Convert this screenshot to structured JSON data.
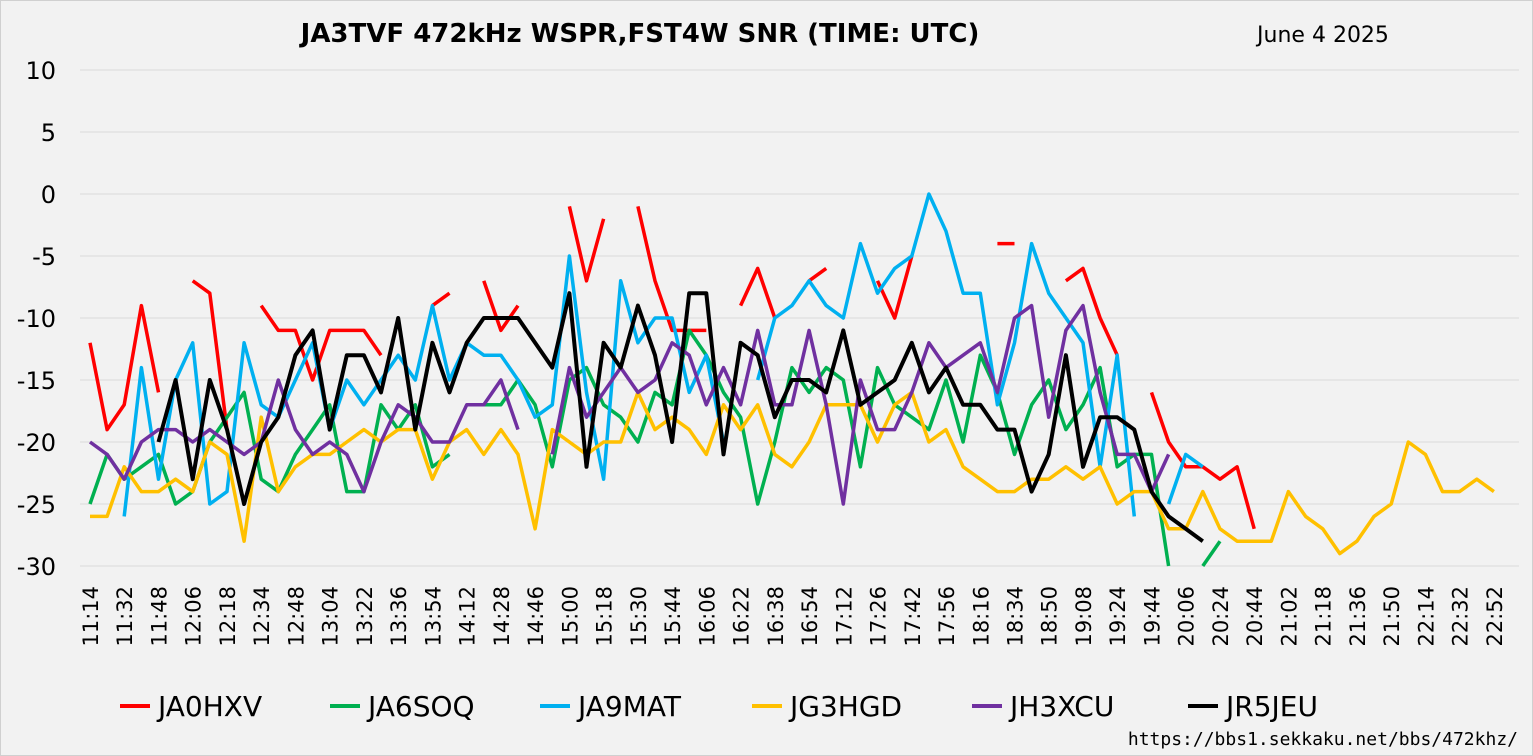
{
  "url": "https://bbs1.sekkaku.net/bbs/472khz/",
  "chart_data": {
    "type": "line",
    "title": "JA3TVF 472kHz WSPR,FST4W SNR (TIME: UTC)",
    "subtitle": "June 4 2025",
    "xlabel": "",
    "ylabel": "",
    "ylim": [
      -30,
      10
    ],
    "yticks": [
      10,
      5,
      0,
      -5,
      -10,
      -15,
      -20,
      -25,
      -30
    ],
    "grid": true,
    "legend_position": "bottom",
    "x_tick_labels": [
      "11:14",
      "11:32",
      "11:48",
      "12:06",
      "12:18",
      "12:34",
      "12:48",
      "13:04",
      "13:22",
      "13:36",
      "13:54",
      "14:12",
      "14:28",
      "14:46",
      "15:00",
      "15:18",
      "15:30",
      "15:44",
      "16:06",
      "16:22",
      "16:38",
      "16:54",
      "17:12",
      "17:26",
      "17:42",
      "17:56",
      "18:16",
      "18:34",
      "18:50",
      "19:08",
      "19:24",
      "19:44",
      "20:06",
      "20:24",
      "20:44",
      "21:02",
      "21:18",
      "21:36",
      "21:50",
      "22:14",
      "22:32",
      "22:52"
    ],
    "point_count": 84,
    "series": [
      {
        "name": "JA0HXV",
        "color": "#ff0000",
        "values": [
          -12,
          -19,
          -17,
          -9,
          -16,
          null,
          -7,
          -8,
          -19,
          null,
          -9,
          -11,
          -11,
          -15,
          -11,
          -11,
          -11,
          -13,
          null,
          null,
          -9,
          -8,
          null,
          -7,
          -11,
          -9,
          null,
          null,
          -1,
          -7,
          -2,
          null,
          -1,
          -7,
          -11,
          -11,
          -11,
          null,
          -9,
          -6,
          -10,
          null,
          -7,
          -6,
          null,
          null,
          -7,
          -10,
          -5,
          null,
          null,
          null,
          null,
          -4,
          -4,
          null,
          null,
          -7,
          -6,
          -10,
          -13,
          null,
          -16,
          -20,
          -22,
          -22,
          -23,
          -22,
          -27
        ]
      },
      {
        "name": "JA6SOQ",
        "color": "#00b050",
        "values": [
          -25,
          -21,
          -23,
          -22,
          -21,
          -25,
          -24,
          -20,
          -18,
          -16,
          -23,
          -24,
          -21,
          -19,
          -17,
          -24,
          -24,
          -17,
          -19,
          -17,
          -22,
          -21,
          null,
          -17,
          -17,
          -15,
          -17,
          -22,
          -15,
          -14,
          -17,
          -18,
          -20,
          -16,
          -17,
          -11,
          -13,
          -16,
          -18,
          -25,
          -20,
          -14,
          -16,
          -14,
          -15,
          -22,
          -14,
          -17,
          -18,
          -19,
          -15,
          -20,
          -13,
          -16,
          -21,
          -17,
          -15,
          -19,
          -17,
          -14,
          -22,
          -21,
          -21,
          -30,
          null,
          -30,
          -28
        ]
      },
      {
        "name": "JA9MAT",
        "color": "#00b0f0",
        "values": [
          null,
          null,
          -26,
          -14,
          -23,
          -15,
          -12,
          -25,
          -24,
          -12,
          -17,
          -18,
          -15,
          -12,
          -19,
          -15,
          -17,
          -15,
          -13,
          -15,
          -9,
          -15,
          -12,
          -13,
          -13,
          -15,
          -18,
          -17,
          -5,
          -16,
          -23,
          -7,
          -12,
          -10,
          -10,
          -16,
          -13,
          -20,
          null,
          -15,
          -10,
          -9,
          -7,
          -9,
          -10,
          -4,
          -8,
          -6,
          -5,
          0,
          -3,
          -8,
          -8,
          -17,
          -12,
          -4,
          -8,
          -10,
          -12,
          -22,
          -13,
          -26,
          null,
          -25,
          -21,
          -22
        ]
      },
      {
        "name": "JG3HGD",
        "color": "#ffc000",
        "values": [
          -26,
          -26,
          -22,
          -24,
          -24,
          -23,
          -24,
          -20,
          -21,
          -28,
          -18,
          -24,
          -22,
          -21,
          -21,
          -20,
          -19,
          -20,
          -19,
          -19,
          -23,
          -20,
          -19,
          -21,
          -19,
          -21,
          -27,
          -19,
          -20,
          -21,
          -20,
          -20,
          -16,
          -19,
          -18,
          -19,
          -21,
          -17,
          -19,
          -17,
          -21,
          -22,
          -20,
          -17,
          -17,
          -17,
          -20,
          -17,
          -16,
          -20,
          -19,
          -22,
          -23,
          -24,
          -24,
          -23,
          -23,
          -22,
          -23,
          -22,
          -25,
          -24,
          -24,
          -27,
          -27,
          -24,
          -27,
          -28,
          -28,
          -28,
          -24,
          -26,
          -27,
          -29,
          -28,
          -26,
          -25,
          -20,
          -21,
          -24,
          -24,
          -23,
          -24
        ]
      },
      {
        "name": "JH3XCU",
        "color": "#7030a0",
        "values": [
          -20,
          -21,
          -23,
          -20,
          -19,
          -19,
          -20,
          -19,
          -20,
          -21,
          -20,
          -15,
          -19,
          -21,
          -20,
          -21,
          -24,
          -20,
          -17,
          -18,
          -20,
          -20,
          -17,
          -17,
          -15,
          -19,
          null,
          -21,
          -14,
          -18,
          -16,
          -14,
          -16,
          -15,
          -12,
          -13,
          -17,
          -14,
          -17,
          -11,
          -17,
          -17,
          -11,
          -17,
          -25,
          -15,
          -19,
          -19,
          -16,
          -12,
          -14,
          -13,
          -12,
          -16,
          -10,
          -9,
          -18,
          -11,
          -9,
          -16,
          -21,
          -21,
          -24,
          -21
        ]
      },
      {
        "name": "JR5JEU",
        "color": "#000000",
        "values": [
          null,
          null,
          null,
          null,
          -20,
          -15,
          -23,
          -15,
          -19,
          -25,
          -20,
          -18,
          -13,
          -11,
          -19,
          -13,
          -13,
          -16,
          -10,
          -19,
          -12,
          -16,
          -12,
          -10,
          -10,
          -10,
          -12,
          -14,
          -8,
          -22,
          -12,
          -14,
          -9,
          -13,
          -20,
          -8,
          -8,
          -21,
          -12,
          -13,
          -18,
          -15,
          -15,
          -16,
          -11,
          -17,
          -16,
          -15,
          -12,
          -16,
          -14,
          -17,
          -17,
          -19,
          -19,
          -24,
          -21,
          -13,
          -22,
          -18,
          -18,
          -19,
          -24,
          -26,
          -27,
          -28
        ]
      }
    ]
  }
}
